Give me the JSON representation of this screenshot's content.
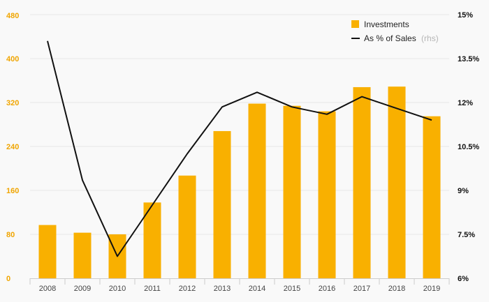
{
  "colors": {
    "bar": "#f9b000",
    "line": "#111111",
    "grid": "#e6e6e6",
    "left_axis_text": "#f0a500",
    "right_axis_text": "#111111",
    "background": "#f9f9f9"
  },
  "legend": {
    "position": "top-right",
    "investments_label": "Investments",
    "sales_label": "As % of Sales",
    "sales_note": "(rhs)"
  },
  "chart_data": {
    "type": "bar",
    "title": "",
    "xlabel": "",
    "ylabel": "",
    "categories": [
      "2008",
      "2009",
      "2010",
      "2011",
      "2012",
      "2013",
      "2014",
      "2015",
      "2016",
      "2017",
      "2018",
      "2019"
    ],
    "series": [
      {
        "name": "Investments",
        "type": "bar",
        "axis": "left",
        "values": [
          97,
          83,
          80,
          138,
          187,
          268,
          318,
          314,
          304,
          348,
          349,
          295
        ]
      },
      {
        "name": "As % of Sales",
        "type": "line",
        "axis": "right",
        "values": [
          14.1,
          9.35,
          6.75,
          8.5,
          10.25,
          11.85,
          12.35,
          11.85,
          11.6,
          12.2,
          11.8,
          11.4
        ]
      }
    ],
    "ylim": [
      0,
      480
    ],
    "y_ticks": [
      "0",
      "80",
      "160",
      "240",
      "320",
      "400",
      "480"
    ],
    "y2lim": [
      6,
      15
    ],
    "y2_ticks": [
      "6%",
      "7.5%",
      "9%",
      "10.5%",
      "12%",
      "13.5%",
      "15%"
    ],
    "grid": true
  }
}
